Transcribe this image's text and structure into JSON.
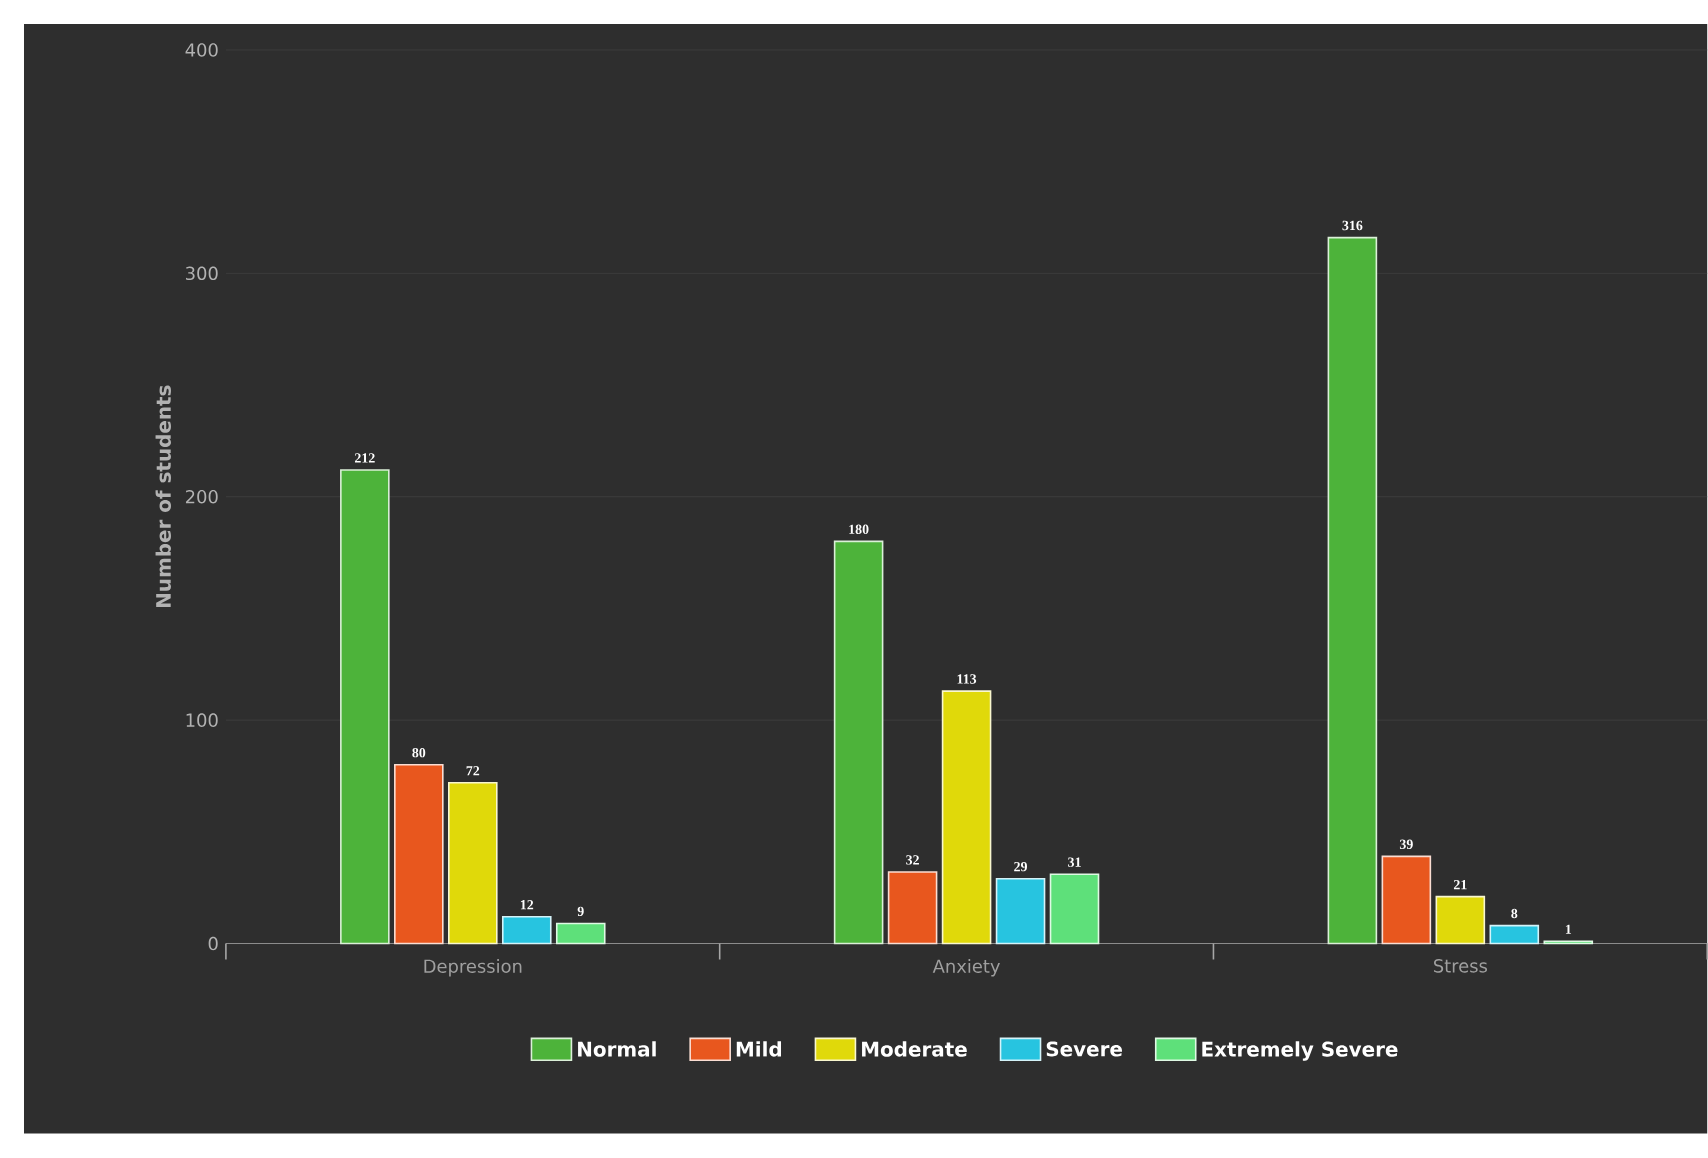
{
  "chart_data": {
    "type": "bar",
    "ylabel": "Number of students",
    "categories": [
      "Depression",
      "Anxiety",
      "Stress"
    ],
    "series": [
      {
        "name": "Normal",
        "color": "#4db33a",
        "values": [
          212,
          180,
          316
        ]
      },
      {
        "name": "Mild",
        "color": "#e8571e",
        "values": [
          80,
          32,
          39
        ]
      },
      {
        "name": "Moderate",
        "color": "#e0d90a",
        "values": [
          72,
          113,
          21
        ]
      },
      {
        "name": "Severe",
        "color": "#27c4e0",
        "values": [
          12,
          29,
          8
        ]
      },
      {
        "name": "Extremely Severe",
        "color": "#5ee07a",
        "values": [
          9,
          31,
          1
        ]
      }
    ],
    "ylim": [
      0,
      400
    ],
    "yticks": [
      0,
      100,
      200,
      300,
      400
    ],
    "grid": "y",
    "legend": "bottom",
    "data_labels": true
  }
}
